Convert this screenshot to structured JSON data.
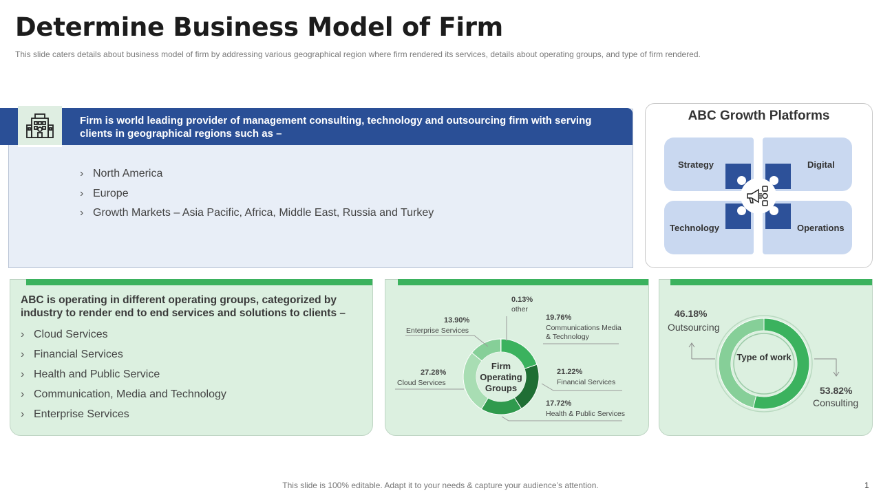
{
  "header": {
    "title": "Determine Business Model of Firm",
    "subtitle": "This slide caters details about business model of firm by addressing various geographical  region where firm rendered  its services, details about operating groups, and type of firm  rendered."
  },
  "regions": {
    "icon": "building-icon",
    "heading": "Firm is world leading provider of management consulting, technology and outsourcing firm with serving clients in geographical regions such as –",
    "items": [
      "North America",
      "Europe",
      "Growth Markets – Asia Pacific, Africa, Middle East, Russia and Turkey"
    ]
  },
  "growth": {
    "title": "ABC Growth Platforms",
    "platforms": [
      "Strategy",
      "Digital",
      "Technology",
      "Operations"
    ],
    "center_icon": "megaphone-icon",
    "color": "#2d5199"
  },
  "operating_groups": {
    "heading": "ABC is operating in different operating groups, categorized by industry to render end to end services and solutions to clients –",
    "items": [
      "Cloud Services",
      "Financial Services",
      "Health and Public Service",
      "Communication, Media and Technology",
      "Enterprise Services"
    ]
  },
  "chart_data": [
    {
      "type": "pie",
      "center_label": "Firm Operating Groups",
      "slices": [
        {
          "label": "Communications Media & Technology",
          "value": 19.76,
          "pct_text": "19.76%",
          "color": "#3bb25e"
        },
        {
          "label": "Financial Services",
          "value": 21.22,
          "pct_text": "21.22%",
          "color": "#1f6e34"
        },
        {
          "label": "Health & Public Services",
          "value": 17.72,
          "pct_text": "17.72%",
          "color": "#2f9a4d"
        },
        {
          "label": "Cloud Services",
          "value": 27.28,
          "pct_text": "27.28%",
          "color": "#a8ddb3"
        },
        {
          "label": "Enterprise Services",
          "value": 13.9,
          "pct_text": "13.90%",
          "color": "#86cf98"
        },
        {
          "label": "other",
          "value": 0.13,
          "pct_text": "0.13%",
          "color": "#5bbf74"
        }
      ]
    },
    {
      "type": "pie",
      "center_label": "Type of work",
      "slices": [
        {
          "label": "Consulting",
          "value": 53.82,
          "pct_text": "53.82%",
          "color": "#3bb25e"
        },
        {
          "label": "Outsourcing",
          "value": 46.18,
          "pct_text": "46.18%",
          "color": "#86cf98"
        }
      ]
    }
  ],
  "footer": {
    "note": "This slide is 100% editable. Adapt it to your needs & capture your audience’s attention.",
    "page": "1"
  }
}
